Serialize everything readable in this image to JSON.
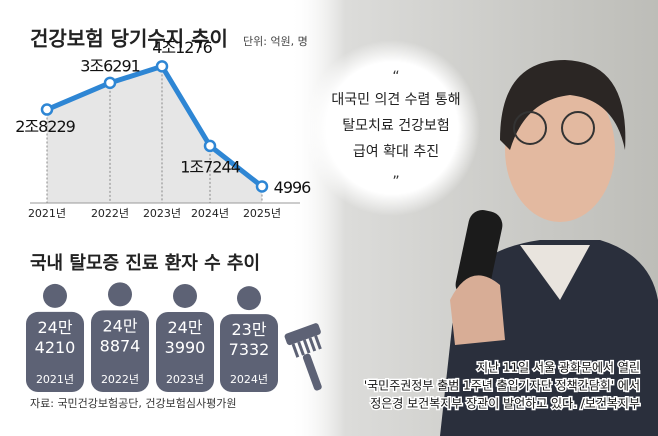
{
  "chart_data": [
    {
      "type": "line",
      "title": "건강보험 당기수지 추이",
      "subtitle": "단위: 억원, 명",
      "categories": [
        "2021년",
        "2022년",
        "2023년",
        "2024년",
        "2025년"
      ],
      "values": [
        28229,
        36291,
        41276,
        17244,
        4996
      ],
      "value_labels": [
        "2조8229",
        "3조6291",
        "4조1276",
        "1조7244",
        "4996"
      ],
      "color": "#2e86d4",
      "ylim": [
        0,
        45000
      ]
    },
    {
      "type": "pictogram",
      "title": "국내 탈모증 진료 환자 수 추이",
      "categories": [
        "2021년",
        "2022년",
        "2023년",
        "2024년"
      ],
      "values": [
        244210,
        248874,
        243990,
        237332
      ],
      "value_labels": [
        "24만 4210",
        "24만 8874",
        "24만 3990",
        "23만 7332"
      ],
      "color": "#5d6275",
      "ylim": [
        0,
        250000
      ]
    }
  ],
  "source": "자료: 국민건강보험공단, 건강보험심사평가원",
  "quote": {
    "open": "“",
    "lines": [
      "대국민 의견 수렴 통해",
      "탈모치료 건강보험",
      "급여 확대 추진"
    ],
    "close": "”"
  },
  "caption": [
    "지난 11일 서울 광화문에서 열린",
    "'국민주권정부 출범 1주년 출입기자단 정책간담회' 에서",
    "정은경 보건복지부 장관이 발언하고 있다. /보건복지부"
  ]
}
